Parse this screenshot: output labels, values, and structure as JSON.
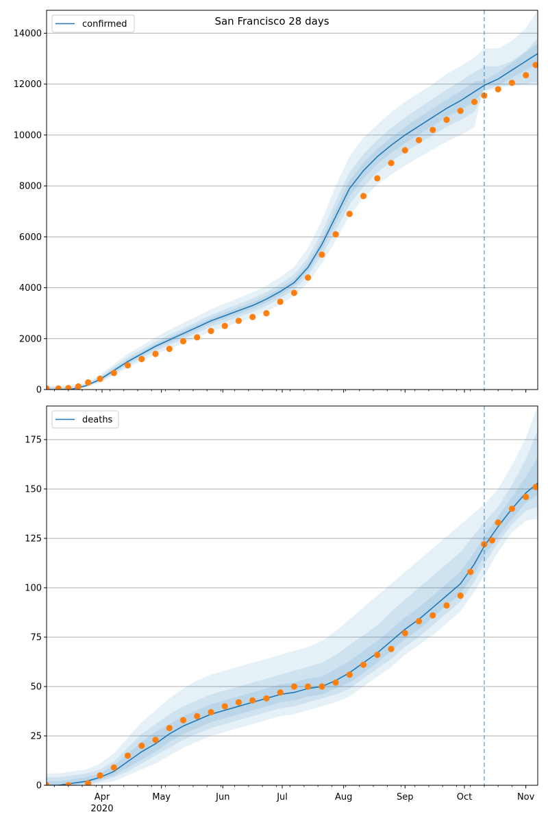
{
  "title": "San Francisco 28 days",
  "colors": {
    "model_line": "#1f77b4",
    "observed_points": "#ff7f0e",
    "band": "#1f77b4",
    "grid": "#b0b0b0",
    "forecast_line": "#1f77b4"
  },
  "chart_data": [
    {
      "type": "line",
      "panel": "top",
      "ylabel": "",
      "xlabel": "",
      "ylim": [
        0,
        14900
      ],
      "xlim": [
        "2020-03-04",
        "2020-11-07"
      ],
      "yticks": [
        0,
        2000,
        4000,
        6000,
        8000,
        10000,
        12000,
        14000
      ],
      "ytick_labels": [
        "0",
        "2000",
        "4000",
        "6000",
        "8000",
        "10000",
        "12000",
        "14000"
      ],
      "grid": "horizontal",
      "legend": {
        "placement": "top-left",
        "entries": [
          "confirmed"
        ]
      },
      "forecast_start": "2020-10-11",
      "series": [
        {
          "name": "confirmed",
          "kind": "model-median",
          "x": [
            "2020-03-04",
            "2020-03-10",
            "2020-03-17",
            "2020-03-24",
            "2020-03-31",
            "2020-04-07",
            "2020-04-14",
            "2020-04-21",
            "2020-04-28",
            "2020-05-05",
            "2020-05-12",
            "2020-05-19",
            "2020-05-26",
            "2020-06-02",
            "2020-06-09",
            "2020-06-16",
            "2020-06-23",
            "2020-06-30",
            "2020-07-07",
            "2020-07-14",
            "2020-07-21",
            "2020-07-28",
            "2020-08-04",
            "2020-08-11",
            "2020-08-18",
            "2020-08-25",
            "2020-09-01",
            "2020-09-08",
            "2020-09-15",
            "2020-09-22",
            "2020-09-29",
            "2020-10-06",
            "2020-10-11",
            "2020-10-18",
            "2020-10-25",
            "2020-11-01",
            "2020-11-07"
          ],
          "values": [
            0,
            0,
            20,
            150,
            400,
            750,
            1100,
            1400,
            1700,
            1950,
            2200,
            2450,
            2700,
            2900,
            3100,
            3300,
            3550,
            3850,
            4200,
            4800,
            5700,
            6800,
            7900,
            8600,
            9150,
            9600,
            10000,
            10350,
            10700,
            11050,
            11350,
            11700,
            11950,
            12200,
            12550,
            12900,
            13200
          ]
        },
        {
          "name": "",
          "kind": "observed",
          "x": [
            "2020-03-04",
            "2020-03-10",
            "2020-03-15",
            "2020-03-20",
            "2020-03-25",
            "2020-03-31",
            "2020-04-07",
            "2020-04-14",
            "2020-04-21",
            "2020-04-28",
            "2020-05-05",
            "2020-05-12",
            "2020-05-19",
            "2020-05-26",
            "2020-06-02",
            "2020-06-09",
            "2020-06-16",
            "2020-06-23",
            "2020-06-30",
            "2020-07-07",
            "2020-07-14",
            "2020-07-21",
            "2020-07-28",
            "2020-08-04",
            "2020-08-11",
            "2020-08-18",
            "2020-08-25",
            "2020-09-01",
            "2020-09-08",
            "2020-09-15",
            "2020-09-22",
            "2020-09-29",
            "2020-10-06",
            "2020-10-11",
            "2020-10-18",
            "2020-10-25",
            "2020-11-01",
            "2020-11-06"
          ],
          "values": [
            40,
            40,
            60,
            120,
            280,
            420,
            650,
            950,
            1200,
            1400,
            1600,
            1900,
            2050,
            2300,
            2500,
            2700,
            2850,
            3000,
            3450,
            3800,
            4400,
            5300,
            6100,
            6900,
            7600,
            8300,
            8900,
            9400,
            9800,
            10200,
            10600,
            10950,
            11300,
            11550,
            11800,
            12050,
            12350,
            12750
          ]
        }
      ],
      "bands": [
        {
          "level": "outer",
          "lower": [
            0,
            0,
            0,
            90,
            280,
            560,
            860,
            1120,
            1380,
            1600,
            1820,
            2050,
            2270,
            2460,
            2640,
            2830,
            3060,
            3350,
            3680,
            4200,
            4950,
            5850,
            6850,
            7520,
            8050,
            8450,
            8800,
            9120,
            9430,
            9740,
            10000,
            10300,
            11950,
            11950,
            11950,
            11950,
            11950
          ],
          "upper": [
            150,
            150,
            160,
            260,
            580,
            1000,
            1400,
            1720,
            2050,
            2350,
            2620,
            2880,
            3150,
            3380,
            3600,
            3820,
            4080,
            4420,
            4820,
            5550,
            6650,
            8000,
            9150,
            9900,
            10400,
            10900,
            11300,
            11650,
            12000,
            12400,
            12700,
            13050,
            13400,
            13400,
            13700,
            14200,
            14900
          ]
        },
        {
          "level": "middle",
          "lower": [
            0,
            0,
            0,
            110,
            320,
            620,
            950,
            1230,
            1510,
            1750,
            1990,
            2230,
            2470,
            2650,
            2850,
            3050,
            3290,
            3580,
            3920,
            4470,
            5270,
            6250,
            7270,
            7980,
            8530,
            8950,
            9330,
            9660,
            9990,
            10330,
            10590,
            10900,
            11700,
            11850,
            11950,
            12000,
            12100
          ],
          "upper": [
            100,
            100,
            110,
            220,
            510,
            900,
            1270,
            1580,
            1880,
            2160,
            2410,
            2670,
            2930,
            3150,
            3360,
            3570,
            3830,
            4150,
            4520,
            5180,
            6180,
            7400,
            8550,
            9240,
            9800,
            10270,
            10680,
            11050,
            11420,
            11780,
            12120,
            12470,
            12700,
            12700,
            12900,
            13300,
            13800
          ]
        },
        {
          "level": "inner",
          "lower": [
            0,
            0,
            0,
            130,
            360,
            680,
            1030,
            1320,
            1610,
            1850,
            2090,
            2340,
            2590,
            2780,
            2970,
            3170,
            3420,
            3710,
            4060,
            4640,
            5490,
            6530,
            7590,
            8300,
            8860,
            9290,
            9680,
            10020,
            10360,
            10710,
            10980,
            11300,
            11750,
            11950,
            12250,
            12550,
            12800
          ],
          "upper": [
            60,
            60,
            70,
            180,
            450,
            820,
            1180,
            1490,
            1790,
            2050,
            2310,
            2560,
            2810,
            3020,
            3230,
            3430,
            3680,
            3990,
            4340,
            4960,
            5910,
            7080,
            8210,
            8900,
            9450,
            9910,
            10320,
            10680,
            11040,
            11390,
            11720,
            12090,
            12150,
            12450,
            12850,
            13250,
            13600
          ]
        }
      ]
    },
    {
      "type": "line",
      "panel": "bottom",
      "ylabel": "",
      "xlabel": "",
      "ylim": [
        0,
        192
      ],
      "xlim": [
        "2020-03-04",
        "2020-11-07"
      ],
      "yticks": [
        0,
        25,
        50,
        75,
        100,
        125,
        150,
        175
      ],
      "ytick_labels": [
        "0",
        "25",
        "50",
        "75",
        "100",
        "125",
        "150",
        "175"
      ],
      "xticks": [
        "2020-04-01",
        "2020-05-01",
        "2020-06-01",
        "2020-07-01",
        "2020-08-01",
        "2020-09-01",
        "2020-10-01",
        "2020-11-01"
      ],
      "xtick_labels": [
        "Apr",
        "May",
        "Jun",
        "Jul",
        "Aug",
        "Sep",
        "Oct",
        "Nov"
      ],
      "year_label": "2020",
      "grid": "horizontal",
      "legend": {
        "placement": "top-left",
        "entries": [
          "deaths"
        ]
      },
      "forecast_start": "2020-10-11",
      "series": [
        {
          "name": "deaths",
          "kind": "model-median",
          "x": [
            "2020-03-04",
            "2020-03-10",
            "2020-03-17",
            "2020-03-24",
            "2020-03-31",
            "2020-04-07",
            "2020-04-14",
            "2020-04-21",
            "2020-04-28",
            "2020-05-05",
            "2020-05-12",
            "2020-05-19",
            "2020-05-26",
            "2020-06-02",
            "2020-06-09",
            "2020-06-16",
            "2020-06-23",
            "2020-06-30",
            "2020-07-07",
            "2020-07-14",
            "2020-07-21",
            "2020-07-28",
            "2020-08-04",
            "2020-08-11",
            "2020-08-18",
            "2020-08-25",
            "2020-09-01",
            "2020-09-08",
            "2020-09-15",
            "2020-09-22",
            "2020-09-29",
            "2020-10-06",
            "2020-10-11",
            "2020-10-18",
            "2020-10-25",
            "2020-11-01",
            "2020-11-07"
          ],
          "values": [
            0,
            0,
            1,
            2,
            4,
            7,
            12,
            17,
            21,
            26,
            30,
            33,
            36,
            38,
            40,
            42,
            44,
            46,
            47,
            49,
            50,
            53,
            57,
            62,
            67,
            73,
            79,
            84,
            90,
            96,
            102,
            112,
            121,
            131,
            140,
            148,
            153
          ]
        },
        {
          "name": "",
          "kind": "observed",
          "x": [
            "2020-03-04",
            "2020-03-15",
            "2020-03-25",
            "2020-03-31",
            "2020-04-07",
            "2020-04-14",
            "2020-04-21",
            "2020-04-28",
            "2020-05-05",
            "2020-05-12",
            "2020-05-19",
            "2020-05-26",
            "2020-06-02",
            "2020-06-09",
            "2020-06-16",
            "2020-06-23",
            "2020-06-30",
            "2020-07-07",
            "2020-07-14",
            "2020-07-21",
            "2020-07-28",
            "2020-08-04",
            "2020-08-11",
            "2020-08-18",
            "2020-08-25",
            "2020-09-01",
            "2020-09-08",
            "2020-09-15",
            "2020-09-22",
            "2020-09-29",
            "2020-10-04",
            "2020-10-11",
            "2020-10-15",
            "2020-10-18",
            "2020-10-25",
            "2020-11-01",
            "2020-11-06"
          ],
          "values": [
            0,
            0,
            1,
            5,
            9,
            15,
            20,
            23,
            29,
            33,
            35,
            37,
            40,
            42,
            43,
            44,
            47,
            50,
            50,
            50,
            52,
            56,
            61,
            66,
            69,
            77,
            83,
            86,
            91,
            96,
            108,
            122,
            124,
            133,
            140,
            146,
            151
          ]
        }
      ],
      "bands": [
        {
          "level": "outer",
          "lower": [
            0,
            0,
            0,
            0,
            1,
            2,
            5,
            8,
            11,
            15,
            19,
            22,
            25,
            27,
            29,
            31,
            33,
            35,
            36,
            38,
            40,
            42,
            45,
            50,
            55,
            60,
            66,
            71,
            76,
            82,
            88,
            98,
            106,
            118,
            128,
            134,
            135
          ],
          "upper": [
            6,
            6,
            7,
            8,
            11,
            16,
            24,
            32,
            38,
            44,
            49,
            53,
            56,
            58,
            60,
            62,
            64,
            66,
            68,
            70,
            73,
            78,
            84,
            90,
            96,
            102,
            108,
            114,
            120,
            126,
            132,
            138,
            142,
            150,
            162,
            176,
            192
          ]
        },
        {
          "level": "middle",
          "lower": [
            0,
            0,
            0,
            0,
            2,
            4,
            7,
            11,
            15,
            19,
            23,
            26,
            29,
            31,
            33,
            35,
            37,
            39,
            40,
            42,
            44,
            46,
            49,
            54,
            59,
            64,
            70,
            75,
            81,
            87,
            93,
            103,
            112,
            123,
            132,
            139,
            141
          ],
          "upper": [
            4,
            4,
            5,
            6,
            8,
            12,
            19,
            26,
            31,
            36,
            40,
            43,
            46,
            48,
            50,
            52,
            54,
            56,
            58,
            60,
            62,
            66,
            71,
            76,
            81,
            88,
            94,
            100,
            106,
            112,
            118,
            127,
            133,
            141,
            152,
            165,
            180
          ]
        },
        {
          "level": "inner",
          "lower": [
            0,
            0,
            0,
            1,
            3,
            5,
            9,
            13,
            17,
            22,
            26,
            29,
            32,
            34,
            36,
            38,
            40,
            42,
            43,
            45,
            46,
            49,
            52,
            57,
            62,
            68,
            74,
            79,
            85,
            91,
            97,
            107,
            116,
            126,
            135,
            143,
            147
          ],
          "upper": [
            2,
            2,
            3,
            4,
            6,
            10,
            16,
            22,
            27,
            31,
            35,
            38,
            41,
            43,
            45,
            47,
            49,
            51,
            52,
            54,
            55,
            59,
            63,
            68,
            73,
            79,
            85,
            90,
            96,
            102,
            108,
            118,
            126,
            136,
            146,
            156,
            166
          ]
        }
      ]
    }
  ]
}
